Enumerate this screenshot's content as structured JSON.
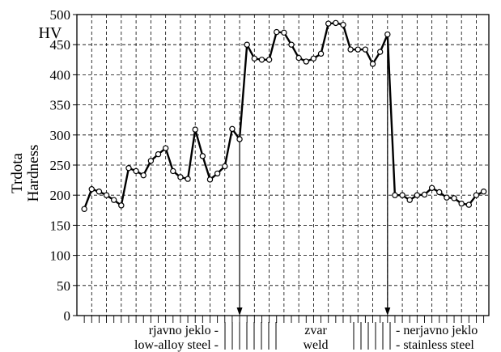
{
  "chart_data": {
    "type": "line",
    "ylabel": [
      "Trdota",
      "Hardness"
    ],
    "unit_label": "HV",
    "ylim": [
      0,
      500
    ],
    "yticks": [
      0,
      50,
      100,
      150,
      200,
      250,
      300,
      350,
      400,
      450,
      500
    ],
    "grid": true,
    "x_index_range": [
      0,
      50
    ],
    "series": [
      {
        "values": [
          {
            "x": 1,
            "y": 177
          },
          {
            "x": 2,
            "y": 210
          },
          {
            "x": 3,
            "y": 206
          },
          {
            "x": 4,
            "y": 200
          },
          {
            "x": 5,
            "y": 192
          },
          {
            "x": 6,
            "y": 183
          },
          {
            "x": 7,
            "y": 245
          },
          {
            "x": 8,
            "y": 240
          },
          {
            "x": 9,
            "y": 233
          },
          {
            "x": 10,
            "y": 257
          },
          {
            "x": 11,
            "y": 268
          },
          {
            "x": 12,
            "y": 278
          },
          {
            "x": 13,
            "y": 240
          },
          {
            "x": 14,
            "y": 230
          },
          {
            "x": 15,
            "y": 227
          },
          {
            "x": 16,
            "y": 309
          },
          {
            "x": 17,
            "y": 265
          },
          {
            "x": 18,
            "y": 226
          },
          {
            "x": 19,
            "y": 236
          },
          {
            "x": 20,
            "y": 248
          },
          {
            "x": 21,
            "y": 310
          },
          {
            "x": 22,
            "y": 293
          },
          {
            "x": 23,
            "y": 450
          },
          {
            "x": 24,
            "y": 427
          },
          {
            "x": 25,
            "y": 425
          },
          {
            "x": 26,
            "y": 425
          },
          {
            "x": 27,
            "y": 471
          },
          {
            "x": 28,
            "y": 470
          },
          {
            "x": 29,
            "y": 450
          },
          {
            "x": 30,
            "y": 428
          },
          {
            "x": 31,
            "y": 422
          },
          {
            "x": 32,
            "y": 427
          },
          {
            "x": 33,
            "y": 435
          },
          {
            "x": 34,
            "y": 485
          },
          {
            "x": 35,
            "y": 486
          },
          {
            "x": 36,
            "y": 483
          },
          {
            "x": 37,
            "y": 442
          },
          {
            "x": 38,
            "y": 442
          },
          {
            "x": 39,
            "y": 442
          },
          {
            "x": 40,
            "y": 418
          },
          {
            "x": 41,
            "y": 438
          },
          {
            "x": 42,
            "y": 467
          },
          {
            "x": 43,
            "y": 200
          },
          {
            "x": 44,
            "y": 200
          },
          {
            "x": 45,
            "y": 192
          },
          {
            "x": 46,
            "y": 200
          },
          {
            "x": 47,
            "y": 201
          },
          {
            "x": 48,
            "y": 212
          },
          {
            "x": 49,
            "y": 205
          },
          {
            "x": 50,
            "y": 196
          }
        ]
      }
    ],
    "tail_points": [
      {
        "x": 51,
        "y": 195
      },
      {
        "x": 52,
        "y": 186
      },
      {
        "x": 53,
        "y": 184
      },
      {
        "x": 54,
        "y": 200
      },
      {
        "x": 55,
        "y": 206
      }
    ],
    "boundary_arrows_at_x": [
      22,
      42
    ],
    "zone_labels": [
      {
        "top": "rjavno jeklo -",
        "bottom": "low-alloy steel -"
      },
      {
        "top": "zvar",
        "bottom": "weld"
      },
      {
        "top": "- nerjavno jeklo",
        "bottom": "- stainless steel"
      }
    ]
  }
}
